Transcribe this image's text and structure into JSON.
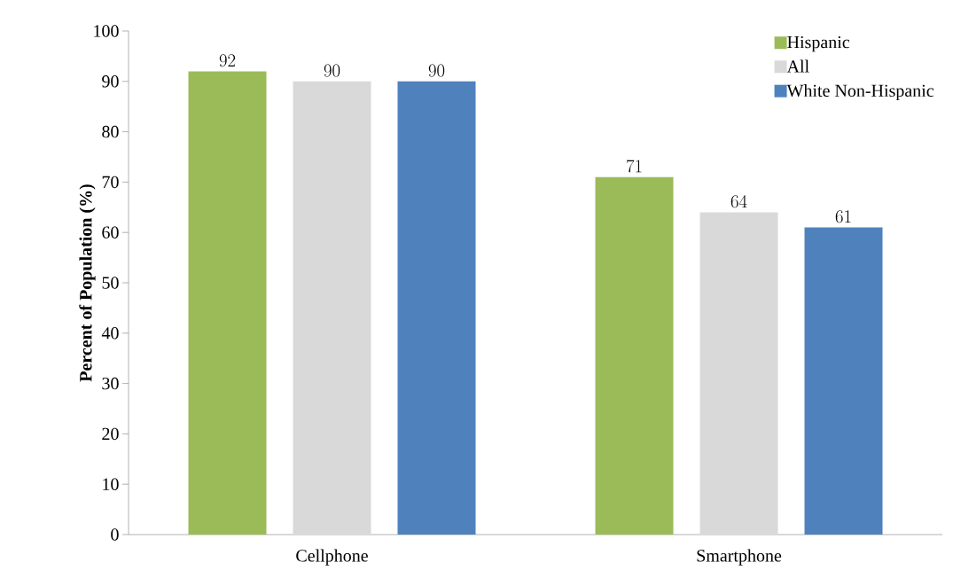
{
  "chart_data": {
    "type": "bar",
    "ylabel": "Percent of Population (%)",
    "categories": [
      "Cellphone",
      "Smartphone"
    ],
    "series": [
      {
        "name": "Hispanic",
        "color": "#9bbb59",
        "values": [
          92,
          71
        ]
      },
      {
        "name": "All",
        "color": "#d9d9d9",
        "values": [
          90,
          64
        ]
      },
      {
        "name": "White Non-Hispanic",
        "color": "#4f81bd",
        "values": [
          90,
          61
        ]
      }
    ],
    "ylim": [
      0,
      100
    ],
    "yticks": [
      0,
      10,
      20,
      30,
      40,
      50,
      60,
      70,
      80,
      90,
      100
    ],
    "data_labels": true,
    "legend": "top right",
    "grid": false
  }
}
